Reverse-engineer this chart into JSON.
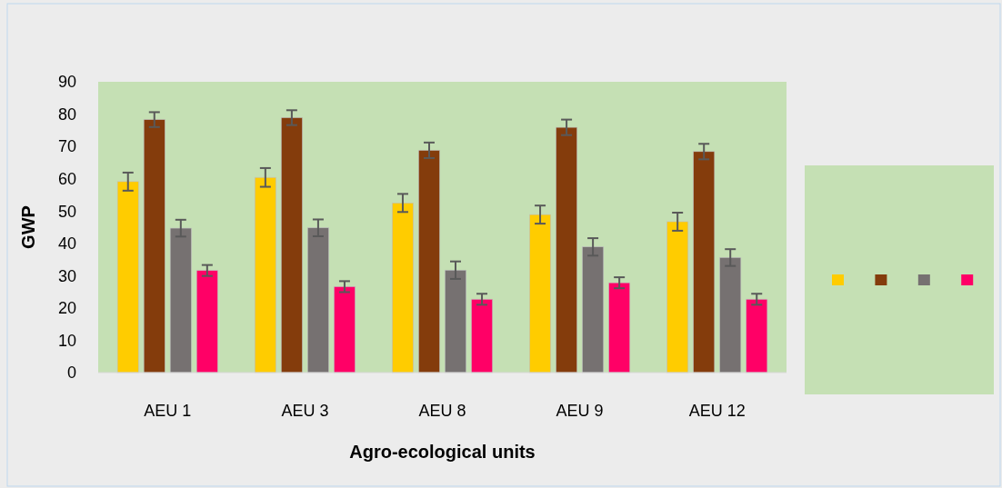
{
  "chart_data": {
    "type": "bar",
    "xlabel": "Agro-ecological units",
    "ylabel": "GWP",
    "categories": [
      "AEU 1",
      "AEU 3",
      "AEU 8",
      "AEU 9",
      "AEU 12"
    ],
    "series": [
      {
        "color": "#ffcc00",
        "values": [
          59.1,
          60.4,
          52.5,
          48.9,
          46.7
        ],
        "errors": [
          2.8,
          2.9,
          2.8,
          2.8,
          2.8
        ]
      },
      {
        "color": "#843c0c",
        "values": [
          78.3,
          78.9,
          68.8,
          75.9,
          68.4
        ],
        "errors": [
          2.3,
          2.3,
          2.4,
          2.4,
          2.4
        ]
      },
      {
        "color": "#767171",
        "values": [
          44.7,
          44.8,
          31.7,
          38.9,
          35.6
        ],
        "errors": [
          2.6,
          2.6,
          2.7,
          2.7,
          2.6
        ]
      },
      {
        "color": "#ff0066",
        "values": [
          31.6,
          26.6,
          22.7,
          27.8,
          22.7
        ],
        "errors": [
          1.7,
          1.7,
          1.7,
          1.7,
          1.7
        ]
      }
    ],
    "ylim": [
      0,
      90
    ],
    "yticks": [
      0,
      10,
      20,
      30,
      40,
      50,
      60,
      70,
      80,
      90
    ]
  }
}
